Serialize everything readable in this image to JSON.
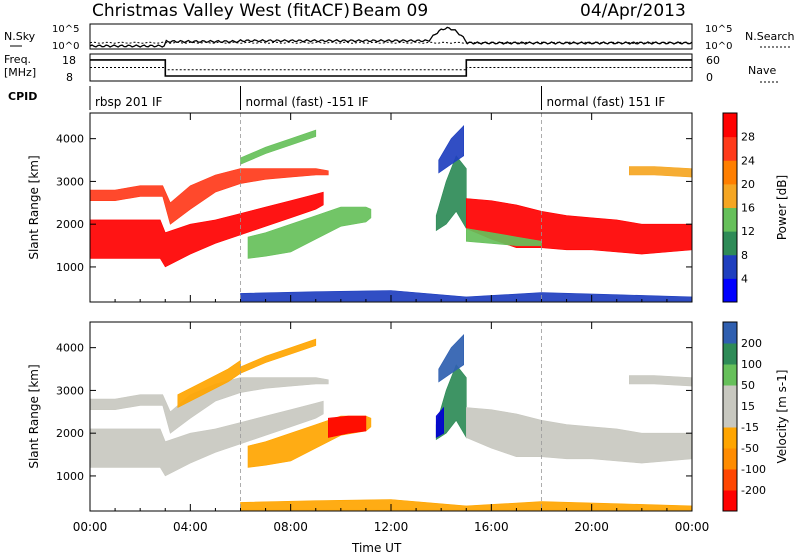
{
  "header": {
    "title": "Christmas Valley West (fitACF)",
    "beam": "Beam 09",
    "date": "04/Apr/2013"
  },
  "nsky_panel": {
    "left_label": "N.Sky",
    "right_label": "N.Search",
    "ticks": [
      "10^5",
      "10^0"
    ]
  },
  "freq_panel": {
    "left_label_1": "Freq.",
    "left_label_2": "[MHz]",
    "left_ticks": [
      "18",
      "8"
    ],
    "right_ticks": [
      "60",
      "0"
    ],
    "right_label": "Nave",
    "freq_series": {
      "x_hours": [
        0,
        3,
        3,
        15,
        15,
        24
      ],
      "mhz": [
        16.3,
        16.3,
        9.3,
        9.3,
        16.3,
        16.3
      ]
    },
    "nave_series": {
      "x_hours": [
        0,
        3,
        3,
        15,
        15,
        24
      ],
      "count": [
        30,
        30,
        25,
        25,
        30,
        30
      ]
    }
  },
  "cpid": {
    "label": "CPID",
    "segments": [
      {
        "start_hour": 0,
        "text": "rbsp 201 IF"
      },
      {
        "start_hour": 6,
        "text": "normal (fast) -151 IF"
      },
      {
        "start_hour": 18,
        "text": "normal (fast) 151 IF"
      }
    ]
  },
  "colors": {
    "power": [
      "#0000ff",
      "#1f3fbf",
      "#2e8b57",
      "#66c05a",
      "#f5a623",
      "#ff7f00",
      "#ff3a1a",
      "#ff0000"
    ],
    "velocity": [
      "#0000d0",
      "#2f5fb0",
      "#2e8b57",
      "#66c05a",
      "#c8c8c0",
      "#c8c8c0",
      "#ffa500",
      "#ff8c00",
      "#ff4500",
      "#ff0000"
    ]
  },
  "chart_data": [
    {
      "type": "heatmap",
      "title": "Power",
      "xlabel": "",
      "ylabel": "Slant Range [km]",
      "x_ticks": [
        "00:00",
        "04:00",
        "08:00",
        "12:00",
        "16:00",
        "20:00",
        "00:00"
      ],
      "xlim_hours": [
        0,
        24
      ],
      "y_ticks": [
        1000,
        2000,
        3000,
        4000
      ],
      "ylim_km": [
        180,
        4600
      ],
      "colorbar": {
        "label": "Power [dB]",
        "ticks": [
          4,
          8,
          12,
          16,
          20,
          24,
          28
        ]
      },
      "regions": [
        {
          "name": "band-a",
          "t": [
            0,
            1,
            2,
            2.8,
            3,
            4,
            5,
            6,
            7,
            8,
            9,
            9.3
          ],
          "lo": [
            1200,
            1200,
            1200,
            1200,
            1000,
            1300,
            1550,
            1750,
            1950,
            2150,
            2350,
            2450
          ],
          "hi": [
            2100,
            2100,
            2100,
            2100,
            1800,
            2000,
            2100,
            2250,
            2400,
            2550,
            2700,
            2750
          ],
          "level": 28
        },
        {
          "name": "band-b",
          "t": [
            0,
            1,
            2,
            2.9,
            3.2,
            4,
            5,
            6,
            7,
            8,
            9,
            9.5
          ],
          "lo": [
            2550,
            2550,
            2650,
            2650,
            2000,
            2350,
            2750,
            2950,
            3050,
            3100,
            3150,
            3150
          ],
          "hi": [
            2800,
            2800,
            2900,
            2900,
            2500,
            2900,
            3150,
            3300,
            3300,
            3300,
            3300,
            3250
          ],
          "level": 26
        },
        {
          "name": "band-c",
          "t": [
            6,
            7,
            8,
            9
          ],
          "lo": [
            3400,
            3650,
            3850,
            4050
          ],
          "hi": [
            3550,
            3800,
            4000,
            4200
          ],
          "level": 14
        },
        {
          "name": "blob",
          "t": [
            6.3,
            7,
            8,
            9,
            10,
            11,
            11.2
          ],
          "lo": [
            1200,
            1250,
            1350,
            1650,
            1950,
            2050,
            2150
          ],
          "hi": [
            1700,
            1800,
            2000,
            2200,
            2400,
            2400,
            2350
          ],
          "level": 14
        },
        {
          "name": "gap",
          "t": [
            13.8,
            14.2,
            14.6,
            15
          ],
          "lo": [
            1850,
            2000,
            2300,
            1900
          ],
          "hi": [
            2200,
            3000,
            3600,
            3300
          ],
          "level": 8
        },
        {
          "name": "plume",
          "t": [
            13.9,
            14.4,
            14.9
          ],
          "lo": [
            3200,
            3400,
            3600
          ],
          "hi": [
            3500,
            4000,
            4300
          ],
          "level": 6
        },
        {
          "name": "late",
          "t": [
            15,
            16,
            17,
            18,
            19,
            20,
            21,
            22,
            23,
            24
          ],
          "lo": [
            1900,
            1650,
            1450,
            1450,
            1400,
            1400,
            1350,
            1300,
            1350,
            1400
          ],
          "hi": [
            2600,
            2550,
            2450,
            2300,
            2200,
            2150,
            2100,
            2000,
            2000,
            2000
          ],
          "level": 28
        },
        {
          "name": "late-lower",
          "t": [
            15,
            16,
            17,
            18
          ],
          "lo": [
            1600,
            1550,
            1500,
            1500
          ],
          "hi": [
            1900,
            1800,
            1700,
            1600
          ],
          "level": 12
        },
        {
          "name": "late-upper",
          "t": [
            21.5,
            22.5,
            24
          ],
          "lo": [
            3150,
            3150,
            3100
          ],
          "hi": [
            3350,
            3350,
            3300
          ],
          "level": 18
        },
        {
          "name": "ground",
          "t": [
            6,
            9,
            12,
            15,
            18,
            21,
            24
          ],
          "lo": [
            200,
            200,
            200,
            200,
            200,
            200,
            200
          ],
          "hi": [
            380,
            420,
            450,
            300,
            400,
            350,
            300
          ],
          "level": 6
        }
      ]
    },
    {
      "type": "heatmap",
      "title": "Velocity",
      "xlabel": "Time UT",
      "ylabel": "Slant Range [km]",
      "x_ticks": [
        "00:00",
        "04:00",
        "08:00",
        "12:00",
        "16:00",
        "20:00",
        "00:00"
      ],
      "xlim_hours": [
        0,
        24
      ],
      "y_ticks": [
        1000,
        2000,
        3000,
        4000
      ],
      "ylim_km": [
        180,
        4600
      ],
      "colorbar": {
        "label": "Velocity [m s-1]",
        "ticks": [
          200,
          100,
          50,
          15,
          -15,
          -50,
          -100,
          -200
        ]
      },
      "regions": [
        {
          "name": "band-a",
          "t": [
            0,
            1,
            2,
            2.8,
            3,
            4,
            5,
            6,
            7,
            8,
            9,
            9.3
          ],
          "lo": [
            1200,
            1200,
            1200,
            1200,
            1000,
            1300,
            1550,
            1750,
            1950,
            2150,
            2350,
            2450
          ],
          "hi": [
            2100,
            2100,
            2100,
            2100,
            1800,
            2000,
            2100,
            2250,
            2400,
            2550,
            2700,
            2750
          ],
          "level": 0
        },
        {
          "name": "band-b",
          "t": [
            0,
            1,
            2,
            2.9,
            3.2,
            4,
            5,
            6,
            7,
            8,
            9,
            9.5
          ],
          "lo": [
            2550,
            2550,
            2650,
            2650,
            2000,
            2350,
            2750,
            2950,
            3050,
            3100,
            3150,
            3150
          ],
          "hi": [
            2800,
            2800,
            2900,
            2900,
            2500,
            2900,
            3150,
            3300,
            3300,
            3300,
            3300,
            3250
          ],
          "level": 0
        },
        {
          "name": "band-c",
          "t": [
            3.5,
            4.5,
            5.5,
            6
          ],
          "lo": [
            2600,
            2900,
            3200,
            3400
          ],
          "hi": [
            2900,
            3200,
            3500,
            3700
          ],
          "level": -50
        },
        {
          "name": "band-d",
          "t": [
            6,
            7,
            8,
            9
          ],
          "lo": [
            3400,
            3650,
            3850,
            4050
          ],
          "hi": [
            3550,
            3800,
            4000,
            4200
          ],
          "level": -50
        },
        {
          "name": "blob",
          "t": [
            6.3,
            7,
            8,
            9,
            10,
            11,
            11.2
          ],
          "lo": [
            1200,
            1250,
            1350,
            1650,
            1950,
            2050,
            2150
          ],
          "hi": [
            1700,
            1800,
            2000,
            2200,
            2400,
            2400,
            2350
          ],
          "level": -60
        },
        {
          "name": "blob-core",
          "t": [
            9.5,
            10.3,
            11
          ],
          "lo": [
            1900,
            2000,
            2050
          ],
          "hi": [
            2350,
            2400,
            2400
          ],
          "level": -200
        },
        {
          "name": "gap",
          "t": [
            13.8,
            14.2,
            14.6,
            15
          ],
          "lo": [
            1850,
            2000,
            2300,
            1900
          ],
          "hi": [
            2200,
            3000,
            3600,
            3300
          ],
          "level": 40
        },
        {
          "name": "gap-blue",
          "t": [
            13.8,
            14.1
          ],
          "lo": [
            1900,
            2000
          ],
          "hi": [
            2400,
            2600
          ],
          "level": 200
        },
        {
          "name": "plume",
          "t": [
            13.9,
            14.4,
            14.9
          ],
          "lo": [
            3200,
            3400,
            3600
          ],
          "hi": [
            3500,
            4000,
            4300
          ],
          "level": 100
        },
        {
          "name": "late",
          "t": [
            15,
            16,
            17,
            18,
            19,
            20,
            21,
            22,
            23,
            24
          ],
          "lo": [
            1900,
            1650,
            1450,
            1450,
            1400,
            1400,
            1350,
            1300,
            1350,
            1400
          ],
          "hi": [
            2600,
            2550,
            2450,
            2300,
            2200,
            2150,
            2100,
            2000,
            2000,
            2000
          ],
          "level": 0
        },
        {
          "name": "late-upper",
          "t": [
            21.5,
            22.5,
            24
          ],
          "lo": [
            3150,
            3150,
            3100
          ],
          "hi": [
            3350,
            3350,
            3300
          ],
          "level": 0
        },
        {
          "name": "ground",
          "t": [
            6,
            9,
            12,
            15,
            18,
            21,
            24
          ],
          "lo": [
            200,
            200,
            200,
            200,
            200,
            200,
            200
          ],
          "hi": [
            380,
            420,
            450,
            300,
            400,
            350,
            300
          ],
          "level": -50
        }
      ]
    }
  ]
}
